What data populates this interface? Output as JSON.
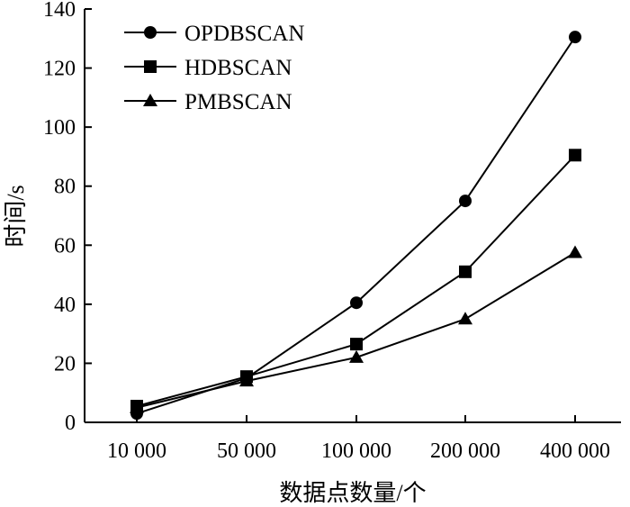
{
  "chart_data": {
    "type": "line",
    "title": "",
    "xlabel": "数据点数量/个",
    "ylabel": "时间/s",
    "categories": [
      "10 000",
      "50 000",
      "100 000",
      "200 000",
      "400 000"
    ],
    "ylim": [
      0,
      140
    ],
    "yticks": [
      0,
      20,
      40,
      60,
      80,
      100,
      120,
      140
    ],
    "grid": false,
    "legend_position": "top-left",
    "series": [
      {
        "name": "OPDBSCAN",
        "marker": "circle",
        "values": [
          3,
          15,
          40.5,
          75,
          130.5
        ]
      },
      {
        "name": "HDBSCAN",
        "marker": "square",
        "values": [
          5.5,
          15.5,
          26.5,
          51,
          90.5
        ]
      },
      {
        "name": "PMBSCAN",
        "marker": "triangle",
        "values": [
          5,
          14,
          22,
          35,
          57.5
        ]
      }
    ],
    "colors": {
      "line": "#000000",
      "axis": "#000000"
    }
  }
}
